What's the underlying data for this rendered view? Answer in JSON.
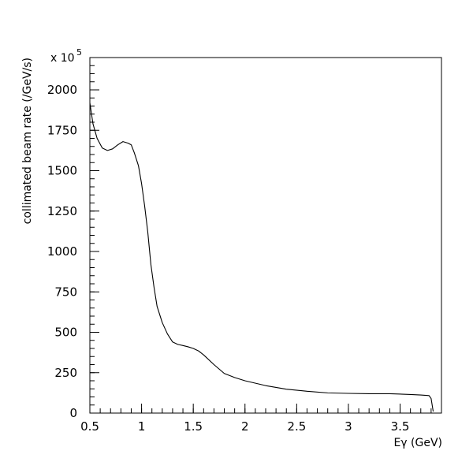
{
  "chart_data": {
    "type": "line",
    "title": "",
    "xlabel": "Eγ (GeV)",
    "ylabel": "collimated beam rate (/GeV/s)",
    "y_multiplier": "x 10",
    "y_multiplier_exponent": "5",
    "xlim": [
      0.5,
      3.9
    ],
    "ylim": [
      0,
      2200
    ],
    "grid": false,
    "legend": "none",
    "x_ticks": [
      {
        "value": 0.5,
        "label": "0.5"
      },
      {
        "value": 1,
        "label": "1"
      },
      {
        "value": 1.5,
        "label": "1.5"
      },
      {
        "value": 2,
        "label": "2"
      },
      {
        "value": 2.5,
        "label": "2.5"
      },
      {
        "value": 3,
        "label": "3"
      },
      {
        "value": 3.5,
        "label": "3.5"
      }
    ],
    "x_minor_step": 0.1,
    "y_ticks": [
      {
        "value": 0,
        "label": "0"
      },
      {
        "value": 250,
        "label": "250"
      },
      {
        "value": 500,
        "label": "500"
      },
      {
        "value": 750,
        "label": "750"
      },
      {
        "value": 1000,
        "label": "1000"
      },
      {
        "value": 1250,
        "label": "1250"
      },
      {
        "value": 1500,
        "label": "1500"
      },
      {
        "value": 1750,
        "label": "1750"
      },
      {
        "value": 2000,
        "label": "2000"
      }
    ],
    "y_minor_step": 50,
    "series": [
      {
        "color": "#000000",
        "x": [
          0.5,
          0.53,
          0.57,
          0.62,
          0.67,
          0.72,
          0.77,
          0.82,
          0.87,
          0.9,
          0.93,
          0.97,
          1.0,
          1.03,
          1.06,
          1.09,
          1.12,
          1.15,
          1.2,
          1.25,
          1.3,
          1.35,
          1.4,
          1.45,
          1.5,
          1.55,
          1.6,
          1.7,
          1.8,
          1.9,
          2.0,
          2.2,
          2.4,
          2.6,
          2.8,
          3.0,
          3.2,
          3.4,
          3.6,
          3.7,
          3.78,
          3.8,
          3.82
        ],
        "y": [
          1920,
          1790,
          1700,
          1640,
          1625,
          1635,
          1660,
          1680,
          1670,
          1660,
          1610,
          1530,
          1420,
          1280,
          1120,
          920,
          780,
          660,
          560,
          490,
          440,
          425,
          418,
          410,
          400,
          385,
          360,
          300,
          245,
          220,
          200,
          170,
          148,
          135,
          125,
          122,
          120,
          120,
          115,
          112,
          108,
          90,
          10
        ]
      }
    ]
  }
}
